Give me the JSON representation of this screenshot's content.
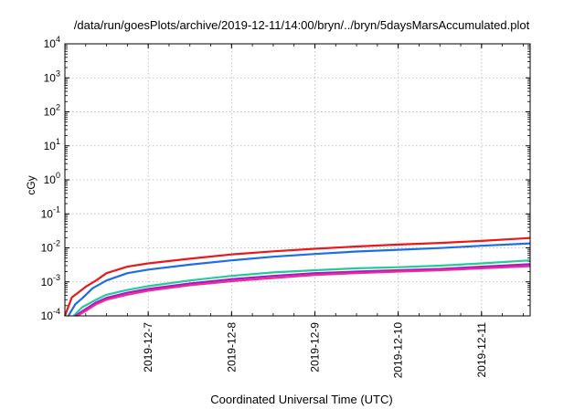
{
  "chart_data": {
    "type": "line",
    "title": "/data/run/goesPlots/archive/2019-12-11/14:00/bryn/../bryn/5daysMarsAccumulated.plot",
    "xlabel": "Coordinated Universal Time (UTC)",
    "ylabel": "cGy",
    "yscale": "log",
    "ylim": [
      0.0001,
      10000
    ],
    "yticks": [
      {
        "base": "10",
        "exp": "4",
        "value": 10000
      },
      {
        "base": "10",
        "exp": "3",
        "value": 1000
      },
      {
        "base": "10",
        "exp": "2",
        "value": 100
      },
      {
        "base": "10",
        "exp": "1",
        "value": 10
      },
      {
        "base": "10",
        "exp": "0",
        "value": 1
      },
      {
        "base": "10",
        "exp": "-1",
        "value": 0.1
      },
      {
        "base": "10",
        "exp": "-2",
        "value": 0.01
      },
      {
        "base": "10",
        "exp": "-3",
        "value": 0.001
      },
      {
        "base": "10",
        "exp": "-4",
        "value": 0.0001
      }
    ],
    "xlim": [
      "2019-12-06 00:00",
      "2019-12-11 14:00"
    ],
    "xticks": [
      "2019-12-7",
      "2019-12-8",
      "2019-12-9",
      "2019-12-10",
      "2019-12-11"
    ],
    "grid": true,
    "series": [
      {
        "color": "#e8191a",
        "x": [
          "2019-12-06 00:00",
          "2019-12-06 02:00",
          "2019-12-06 04:00",
          "2019-12-06 06:00",
          "2019-12-06 09:00",
          "2019-12-06 12:00",
          "2019-12-06 18:00",
          "2019-12-07 00:00",
          "2019-12-07 12:00",
          "2019-12-08 00:00",
          "2019-12-08 12:00",
          "2019-12-09 00:00",
          "2019-12-09 12:00",
          "2019-12-10 00:00",
          "2019-12-10 12:00",
          "2019-12-11 00:00",
          "2019-12-11 14:00"
        ],
        "y": [
          0.0001,
          0.00035,
          0.0005,
          0.00072,
          0.0011,
          0.0018,
          0.0028,
          0.0035,
          0.0048,
          0.0064,
          0.0079,
          0.0094,
          0.011,
          0.0125,
          0.014,
          0.016,
          0.0195
        ]
      },
      {
        "color": "#1d6de8",
        "x": [
          "2019-12-06 01:00",
          "2019-12-06 03:00",
          "2019-12-06 05:00",
          "2019-12-06 08:00",
          "2019-12-06 12:00",
          "2019-12-06 18:00",
          "2019-12-07 00:00",
          "2019-12-07 12:00",
          "2019-12-08 00:00",
          "2019-12-08 12:00",
          "2019-12-09 00:00",
          "2019-12-09 12:00",
          "2019-12-10 00:00",
          "2019-12-10 12:00",
          "2019-12-11 00:00",
          "2019-12-11 14:00"
        ],
        "y": [
          0.0001,
          0.00022,
          0.00033,
          0.00065,
          0.0011,
          0.0018,
          0.0023,
          0.0032,
          0.0043,
          0.0055,
          0.0066,
          0.0078,
          0.0088,
          0.0099,
          0.0115,
          0.0135
        ]
      },
      {
        "color": "#26c99c",
        "x": [
          "2019-12-06 02:30",
          "2019-12-06 05:00",
          "2019-12-06 09:00",
          "2019-12-06 12:00",
          "2019-12-06 18:00",
          "2019-12-07 00:00",
          "2019-12-07 12:00",
          "2019-12-08 00:00",
          "2019-12-08 12:00",
          "2019-12-09 00:00",
          "2019-12-09 12:00",
          "2019-12-10 00:00",
          "2019-12-10 12:00",
          "2019-12-11 00:00",
          "2019-12-11 14:00"
        ],
        "y": [
          0.0001,
          0.00018,
          0.0003,
          0.00042,
          0.00058,
          0.00075,
          0.0011,
          0.0015,
          0.0019,
          0.0022,
          0.0025,
          0.0027,
          0.003,
          0.0035,
          0.0043
        ]
      },
      {
        "color": "#9b1fc6",
        "x": [
          "2019-12-06 03:00",
          "2019-12-06 06:00",
          "2019-12-06 09:00",
          "2019-12-06 12:00",
          "2019-12-06 18:00",
          "2019-12-07 00:00",
          "2019-12-07 12:00",
          "2019-12-08 00:00",
          "2019-12-08 12:00",
          "2019-12-09 00:00",
          "2019-12-09 12:00",
          "2019-12-10 00:00",
          "2019-12-10 12:00",
          "2019-12-11 00:00",
          "2019-12-11 14:00"
        ],
        "y": [
          0.0001,
          0.00016,
          0.00025,
          0.00034,
          0.00048,
          0.00062,
          0.0009,
          0.0012,
          0.0015,
          0.0018,
          0.002,
          0.0022,
          0.0024,
          0.0028,
          0.0033
        ]
      },
      {
        "color": "#f0289a",
        "x": [
          "2019-12-06 03:30",
          "2019-12-06 06:00",
          "2019-12-06 09:00",
          "2019-12-06 12:00",
          "2019-12-06 18:00",
          "2019-12-07 00:00",
          "2019-12-07 12:00",
          "2019-12-08 00:00",
          "2019-12-08 12:00",
          "2019-12-09 00:00",
          "2019-12-09 12:00",
          "2019-12-10 00:00",
          "2019-12-10 12:00",
          "2019-12-11 00:00",
          "2019-12-11 14:00"
        ],
        "y": [
          0.0001,
          0.00014,
          0.00022,
          0.0003,
          0.00042,
          0.00055,
          0.0008,
          0.00105,
          0.0013,
          0.0016,
          0.0018,
          0.002,
          0.0022,
          0.0025,
          0.0029
        ]
      }
    ]
  }
}
